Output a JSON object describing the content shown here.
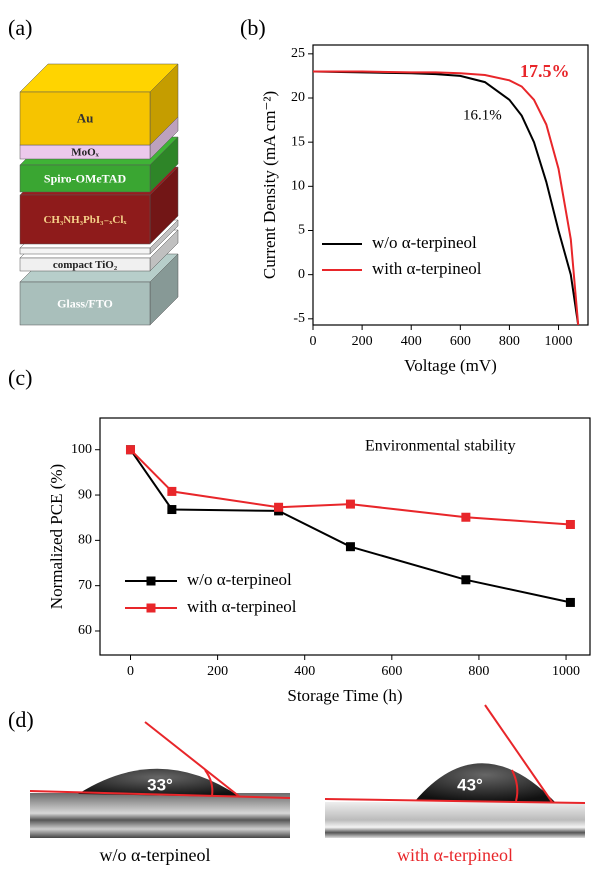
{
  "panel_labels": [
    "(a)",
    "(b)",
    "(c)",
    "(d)"
  ],
  "device_stack": {
    "layers": [
      "Au",
      "MoOₓ",
      "Spiro-OMeTAD",
      "CH₃NH₃PbI₃₋ₓClₓ",
      "compact TiO₂",
      "Glass/FTO"
    ]
  },
  "chart_data": [
    {
      "type": "line",
      "x_label": "Voltage (mV)",
      "y_label": "Current Density (mA cm⁻²)",
      "x": [
        0,
        200,
        400,
        500,
        600,
        700,
        800,
        850,
        900,
        950,
        1000,
        1050,
        1080
      ],
      "series": [
        {
          "name": "w/o α-terpineol",
          "color": "#000000",
          "values": [
            23.0,
            22.9,
            22.8,
            22.7,
            22.5,
            21.8,
            19.8,
            18.0,
            15.0,
            10.5,
            5.0,
            0.0,
            -5.7
          ]
        },
        {
          "name": "with α-terpineol",
          "color": "#e8262a",
          "values": [
            23.0,
            23.0,
            22.9,
            22.9,
            22.8,
            22.6,
            22.0,
            21.3,
            19.8,
            17.0,
            12.0,
            4.0,
            -5.7
          ]
        }
      ],
      "xlim": [
        0,
        1120
      ],
      "ylim": [
        -5.7,
        26
      ],
      "xticks": [
        0,
        200,
        400,
        600,
        800,
        1000
      ],
      "yticks": [
        -5,
        0,
        5,
        10,
        15,
        20,
        25
      ],
      "markers": false,
      "legend": "lower left",
      "annotations": [
        {
          "text": "17.5%",
          "color": "#e8262a"
        },
        {
          "text": "16.1%",
          "color": "#000000"
        }
      ]
    },
    {
      "type": "line",
      "x_label": "Storage Time (h)",
      "y_label": "Normalized PCE (%)",
      "x": [
        0,
        95,
        340,
        505,
        770,
        1010
      ],
      "series": [
        {
          "name": "w/o α-terpineol",
          "color": "#000000",
          "values": [
            100,
            86.8,
            86.5,
            78.6,
            71.3,
            66.3
          ]
        },
        {
          "name": "with α-terpineol",
          "color": "#e8262a",
          "values": [
            100,
            90.8,
            87.3,
            88.0,
            85.1,
            83.5
          ]
        }
      ],
      "xlim": [
        -70,
        1055
      ],
      "ylim": [
        54.7,
        107
      ],
      "xticks": [
        0,
        200,
        400,
        600,
        800,
        1000
      ],
      "yticks": [
        60,
        70,
        80,
        90,
        100
      ],
      "markers": true,
      "legend": "lower left",
      "annotations": [
        {
          "text": "Environmental stability",
          "color": "#000000"
        }
      ]
    }
  ],
  "contact_angle": {
    "images": [
      {
        "angle": "33°",
        "caption": "w/o α-terpineol"
      },
      {
        "angle": "43°",
        "caption": "with α-terpineol"
      }
    ]
  }
}
